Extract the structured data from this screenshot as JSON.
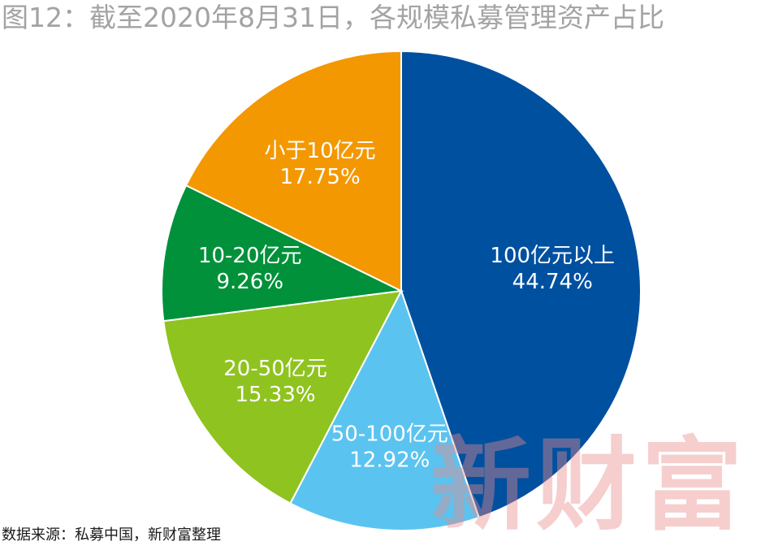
{
  "title": "图12：截至2020年8月31日，各规模私募管理资产占比",
  "source": "数据来源：私募中国，新财富整理",
  "watermark": "新财富",
  "chart_data": {
    "type": "pie",
    "title": "图12：截至2020年8月31日，各规模私募管理资产占比",
    "slices": [
      {
        "label": "100亿元以上",
        "value": 44.74,
        "value_label": "44.74%",
        "color": "#0050a0"
      },
      {
        "label": "50-100亿元",
        "value": 12.92,
        "value_label": "12.92%",
        "color": "#5bc3f0"
      },
      {
        "label": "20-50亿元",
        "value": 15.33,
        "value_label": "15.33%",
        "color": "#8fc31f"
      },
      {
        "label": "10-20亿元",
        "value": 9.26,
        "value_label": "9.26%",
        "color": "#00913a"
      },
      {
        "label": "小于10亿元",
        "value": 17.75,
        "value_label": "17.75%",
        "color": "#f39800"
      }
    ],
    "start": "12 o'clock",
    "direction": "clockwise",
    "label_color": "#ffffff"
  }
}
